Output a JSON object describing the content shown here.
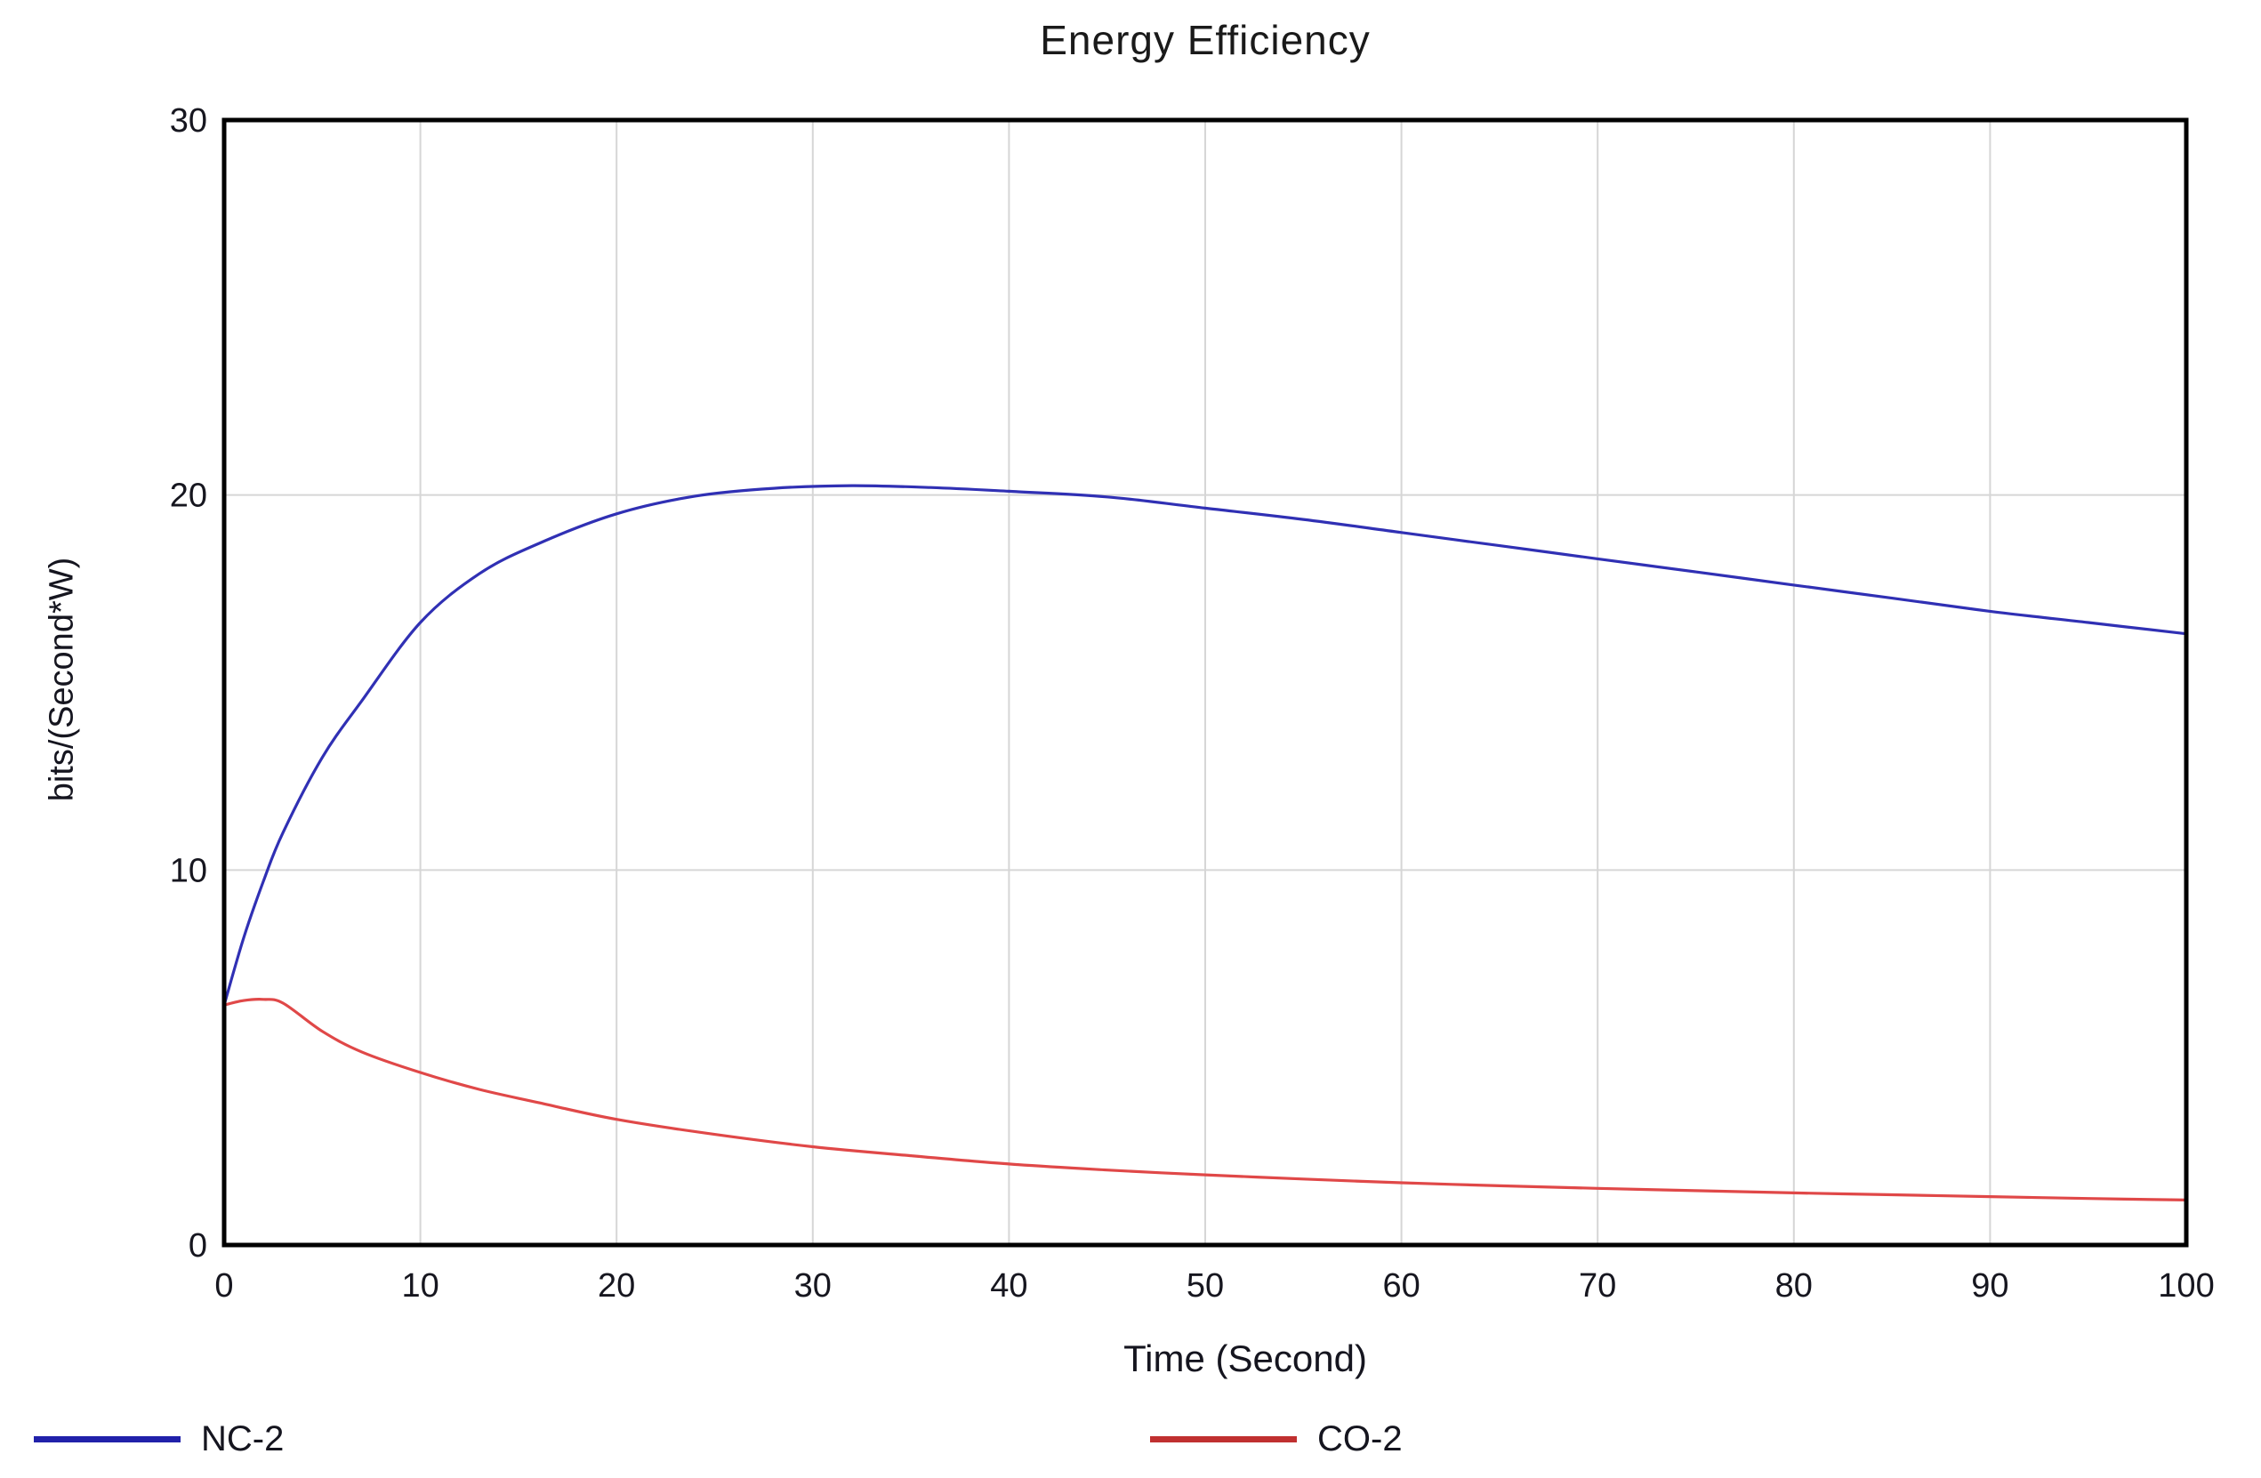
{
  "chart_data": {
    "type": "line",
    "title": "Energy Efficiency",
    "xlabel": "Time (Second)",
    "ylabel": "bits/(Second*W)",
    "xlim": [
      0,
      100
    ],
    "ylim": [
      0,
      30
    ],
    "x_ticks": [
      0,
      10,
      20,
      30,
      40,
      50,
      60,
      70,
      80,
      90,
      100
    ],
    "y_ticks": [
      0,
      10,
      20,
      30
    ],
    "grid": true,
    "legend_position": "bottom",
    "colors": {
      "grid": "#d6d6d6",
      "axis": "#000000",
      "title": "#1a1a1a",
      "tick_label": "#16161f"
    },
    "series": [
      {
        "name": "NC-2",
        "color": "#3030b4",
        "legend_color": "#2121aa",
        "x": [
          0,
          1,
          2,
          3,
          5,
          7,
          10,
          13,
          16,
          20,
          24,
          28,
          32,
          36,
          40,
          45,
          50,
          55,
          60,
          65,
          70,
          75,
          80,
          85,
          90,
          95,
          100
        ],
        "y": [
          6.4,
          8.2,
          9.7,
          11.0,
          13.0,
          14.5,
          16.6,
          17.9,
          18.7,
          19.5,
          19.97,
          20.18,
          20.25,
          20.2,
          20.1,
          19.95,
          19.65,
          19.35,
          19.0,
          18.65,
          18.3,
          17.95,
          17.6,
          17.25,
          16.9,
          16.6,
          16.3
        ]
      },
      {
        "name": "CO-2",
        "color": "#e04848",
        "legend_color": "#c03030",
        "x": [
          0,
          1,
          2,
          3,
          5,
          7,
          10,
          13,
          16,
          20,
          25,
          30,
          35,
          40,
          45,
          50,
          55,
          60,
          65,
          70,
          75,
          80,
          85,
          90,
          95,
          100
        ],
        "y": [
          6.4,
          6.52,
          6.55,
          6.45,
          5.7,
          5.15,
          4.6,
          4.15,
          3.8,
          3.35,
          2.95,
          2.62,
          2.38,
          2.16,
          2.0,
          1.87,
          1.76,
          1.66,
          1.58,
          1.51,
          1.45,
          1.39,
          1.34,
          1.29,
          1.24,
          1.2
        ]
      }
    ]
  }
}
